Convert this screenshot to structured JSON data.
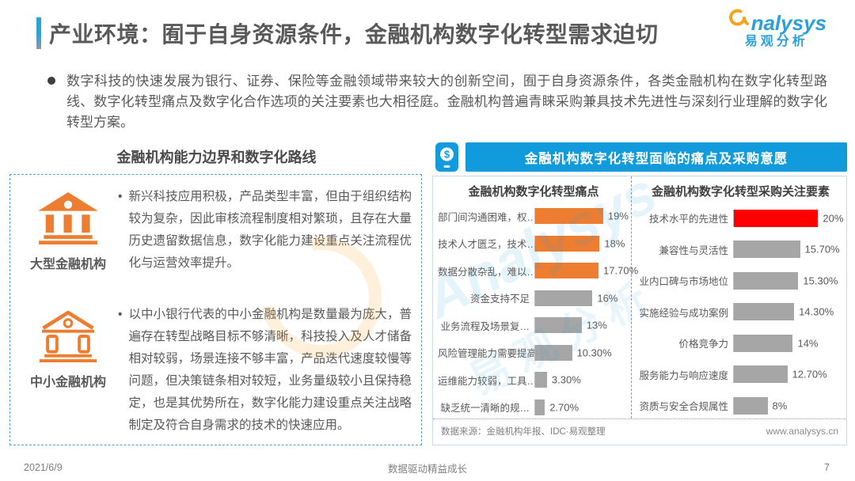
{
  "page": {
    "title": "产业环境：囿于自身资源条件，金融机构数字化转型需求迫切",
    "logo": {
      "brand": "nalysys",
      "brand_cn": "易观分析"
    },
    "intro_bullet": "数字科技的快速发展为银行、证券、保险等金融领域带来较大的创新空间，囿于自身资源条件，各类金融机构在数字化转型路线、数字化转型痛点及数字化合作选项的关注要素也大相径庭。金融机构普遍青睐采购兼具技术先进性与深刻行业理解的数字化转型方案。",
    "footer": {
      "date": "2021/6/9",
      "center": "数据驱动精益成长",
      "page_number": "7"
    }
  },
  "left_panel": {
    "header": "金融机构能力边界和数字化路线",
    "items": [
      {
        "icon": "bank-solid-icon",
        "label": "大型金融机构",
        "bullet": "•",
        "text": "新兴科技应用积极，产品类型丰富，但由于组织结构较为复杂，因此审核流程制度相对繁琐，且存在大量历史遗留数据信息，数字化能力建设重点关注流程优化与运营效率提升。"
      },
      {
        "icon": "bank-outline-icon",
        "label": "中小金融机构",
        "bullet": "•",
        "text": "以中小银行代表的中小金融机构是数量最为庞大，普遍存在转型战略目标不够清晰，科技投入及人才储备相对较弱，场景连接不够丰富，产品迭代速度较慢等问题，但决策链条相对较短，业务量级较小且保持稳定，也是其优势所在，数字化能力建设重点关注战略制定及符合自身需求的技术的快速应用。"
      }
    ]
  },
  "right_panel": {
    "banner": "金融机构数字化转型面临的痛点及采购意愿",
    "banner_icon": "mobile-payment-icon",
    "source": "数据来源：金融机构年报、IDC·易观整理",
    "website": "www.analysys.cn"
  },
  "colors": {
    "accent_blue": "#119BDC",
    "orange": "#ED7D31",
    "gray_bar": "#A6A6A6",
    "red": "#FE0000",
    "dashed_border_blue": "#5B9BD5",
    "panel_border": "#CBDCEA",
    "text_dark": "#595959"
  },
  "chart_data": [
    {
      "type": "bar",
      "orientation": "horizontal",
      "title": "金融机构数字化转型痛点",
      "categories": [
        "部门间沟通困难，权…",
        "技术人才匮乏，技术…",
        "数据分散杂乱，难以…",
        "资金支持不足",
        "业务流程及场景复…",
        "风险管理能力需要提高",
        "运维能力较弱，工具…",
        "缺乏统一清晰的规…"
      ],
      "values": [
        19,
        18,
        17.7,
        16,
        13,
        10.3,
        3.3,
        2.7
      ],
      "value_labels": [
        "19%",
        "18%",
        "17.70%",
        "16%",
        "13%",
        "10.30%",
        "3.30%",
        "2.70%"
      ],
      "colors": [
        "#ED7D31",
        "#ED7D31",
        "#ED7D31",
        "#A6A6A6",
        "#A6A6A6",
        "#A6A6A6",
        "#A6A6A6",
        "#A6A6A6"
      ],
      "xlim": [
        0,
        20
      ],
      "grid": false,
      "legend": false
    },
    {
      "type": "bar",
      "orientation": "horizontal",
      "title": "金融机构数字化转型采购关注要素",
      "categories": [
        "技术水平的先进性",
        "兼容性与灵活性",
        "业内口碑与市场地位",
        "实施经验与成功案例",
        "价格竞争力",
        "服务能力与响应速度",
        "资质与安全合规属性"
      ],
      "values": [
        20,
        15.7,
        15.3,
        14.3,
        14,
        12.7,
        8
      ],
      "value_labels": [
        "20%",
        "15.70%",
        "15.30%",
        "14.30%",
        "14%",
        "12.70%",
        "8%"
      ],
      "colors": [
        "#FE0000",
        "#A6A6A6",
        "#A6A6A6",
        "#A6A6A6",
        "#A6A6A6",
        "#A6A6A6",
        "#A6A6A6"
      ],
      "xlim": [
        0,
        20
      ],
      "grid": false,
      "legend": false
    }
  ]
}
